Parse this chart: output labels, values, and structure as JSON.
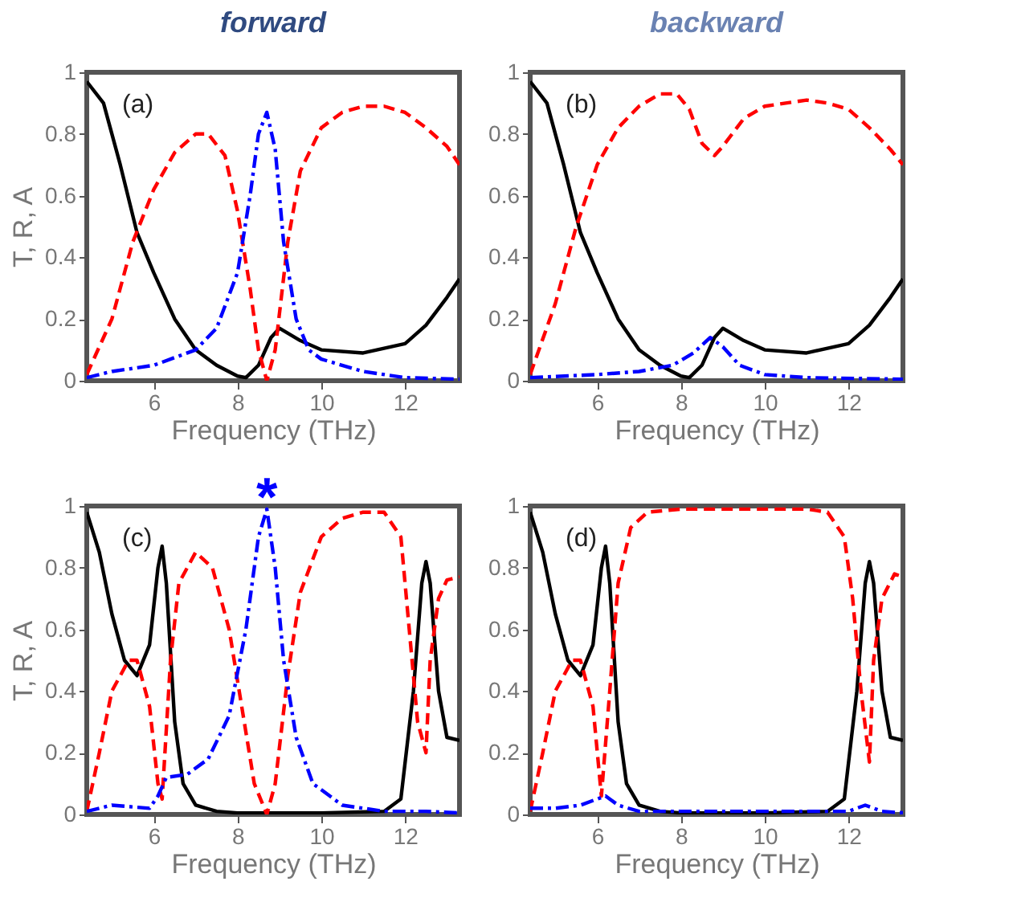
{
  "chart_data": [
    {
      "type": "line",
      "title": "forward",
      "xlabel": "Frequency (THz)",
      "ylabel": "T, R, A",
      "annotations": [
        "(a)"
      ],
      "xlim": [
        4.4,
        13.3
      ],
      "xticks": [
        6,
        8,
        10,
        12
      ],
      "ylim": [
        0,
        1
      ],
      "yticks": [
        0,
        0.2,
        0.4,
        0.6,
        0.8,
        1
      ],
      "grid": false,
      "series": [
        {
          "color": "#000000",
          "line_style": "solid",
          "x": [
            4.4,
            4.8,
            5.2,
            5.6,
            6,
            6.5,
            7,
            7.5,
            8,
            8.2,
            8.5,
            8.8,
            9,
            9.5,
            10,
            11,
            12,
            12.5,
            13,
            13.3
          ],
          "values": [
            0.97,
            0.9,
            0.7,
            0.48,
            0.35,
            0.2,
            0.1,
            0.05,
            0.015,
            0.01,
            0.05,
            0.14,
            0.17,
            0.13,
            0.1,
            0.09,
            0.12,
            0.18,
            0.27,
            0.33
          ]
        },
        {
          "color": "#ff0000",
          "line_style": "dashed",
          "x": [
            4.4,
            5,
            5.5,
            6,
            6.5,
            7,
            7.3,
            7.7,
            8,
            8.3,
            8.5,
            8.7,
            8.9,
            9.2,
            9.5,
            10,
            10.5,
            11,
            11.5,
            12,
            12.5,
            13,
            13.3
          ],
          "values": [
            0.02,
            0.2,
            0.45,
            0.62,
            0.74,
            0.8,
            0.8,
            0.73,
            0.55,
            0.3,
            0.1,
            0,
            0.1,
            0.45,
            0.68,
            0.82,
            0.87,
            0.89,
            0.89,
            0.87,
            0.82,
            0.76,
            0.7
          ]
        },
        {
          "color": "#0000ff",
          "line_style": "dashdot",
          "x": [
            4.4,
            5,
            6,
            7,
            7.5,
            8,
            8.3,
            8.5,
            8.7,
            8.9,
            9.1,
            9.4,
            9.7,
            10,
            11,
            12,
            13.3
          ],
          "values": [
            0.01,
            0.03,
            0.05,
            0.1,
            0.17,
            0.35,
            0.6,
            0.8,
            0.87,
            0.75,
            0.45,
            0.2,
            0.1,
            0.07,
            0.03,
            0.01,
            0.005
          ]
        }
      ]
    },
    {
      "type": "line",
      "title": "backward",
      "xlabel": "Frequency (THz)",
      "annotations": [
        "(b)"
      ],
      "xlim": [
        4.4,
        13.3
      ],
      "xticks": [
        6,
        8,
        10,
        12
      ],
      "ylim": [
        0,
        1
      ],
      "yticks": [
        0,
        0.2,
        0.4,
        0.6,
        0.8,
        1
      ],
      "grid": false,
      "series": [
        {
          "color": "#000000",
          "line_style": "solid",
          "x": [
            4.4,
            4.8,
            5.2,
            5.6,
            6,
            6.5,
            7,
            7.5,
            8,
            8.2,
            8.5,
            8.8,
            9,
            9.5,
            10,
            11,
            12,
            12.5,
            13,
            13.3
          ],
          "values": [
            0.97,
            0.9,
            0.7,
            0.48,
            0.35,
            0.2,
            0.1,
            0.05,
            0.015,
            0.01,
            0.05,
            0.14,
            0.17,
            0.13,
            0.1,
            0.09,
            0.12,
            0.18,
            0.27,
            0.33
          ]
        },
        {
          "color": "#ff0000",
          "line_style": "dashed",
          "x": [
            4.4,
            5,
            5.5,
            6,
            6.5,
            7,
            7.5,
            7.9,
            8.2,
            8.5,
            8.8,
            9,
            9.5,
            10,
            10.5,
            11,
            11.5,
            12,
            12.5,
            13,
            13.3
          ],
          "values": [
            0.02,
            0.25,
            0.5,
            0.7,
            0.82,
            0.89,
            0.93,
            0.93,
            0.88,
            0.77,
            0.73,
            0.76,
            0.85,
            0.89,
            0.9,
            0.91,
            0.9,
            0.88,
            0.82,
            0.75,
            0.7
          ]
        },
        {
          "color": "#0000ff",
          "line_style": "dashdot",
          "x": [
            4.4,
            6,
            7,
            7.8,
            8.3,
            8.7,
            9,
            9.4,
            10,
            11,
            13.3
          ],
          "values": [
            0.01,
            0.02,
            0.03,
            0.05,
            0.09,
            0.14,
            0.11,
            0.05,
            0.02,
            0.01,
            0.005
          ]
        }
      ]
    },
    {
      "type": "line",
      "xlabel": "Frequency (THz)",
      "ylabel": "T, R, A",
      "annotations": [
        "(c)",
        {
          "text": "*",
          "x": 8.7,
          "y": 1
        }
      ],
      "xlim": [
        4.4,
        13.3
      ],
      "xticks": [
        6,
        8,
        10,
        12
      ],
      "ylim": [
        0,
        1
      ],
      "yticks": [
        0,
        0.2,
        0.4,
        0.6,
        0.8,
        1
      ],
      "grid": false,
      "series": [
        {
          "color": "#000000",
          "line_style": "solid",
          "x": [
            4.4,
            4.7,
            5,
            5.3,
            5.6,
            5.9,
            6.1,
            6.2,
            6.3,
            6.5,
            6.7,
            7,
            7.5,
            8,
            10,
            11.5,
            11.9,
            12.2,
            12.4,
            12.5,
            12.6,
            12.8,
            13,
            13.3
          ],
          "values": [
            0.98,
            0.85,
            0.65,
            0.5,
            0.45,
            0.55,
            0.8,
            0.87,
            0.75,
            0.3,
            0.1,
            0.03,
            0.01,
            0.005,
            0.005,
            0.01,
            0.05,
            0.4,
            0.75,
            0.82,
            0.75,
            0.4,
            0.25,
            0.24
          ]
        },
        {
          "color": "#ff0000",
          "line_style": "dashed",
          "x": [
            4.4,
            4.7,
            5,
            5.4,
            5.6,
            5.9,
            6.1,
            6.2,
            6.4,
            6.6,
            7,
            7.4,
            7.8,
            8.1,
            8.4,
            8.7,
            8.9,
            9.2,
            9.5,
            10,
            10.5,
            11,
            11.5,
            11.9,
            12.1,
            12.3,
            12.5,
            12.6,
            12.8,
            13,
            13.3
          ],
          "values": [
            0.01,
            0.2,
            0.4,
            0.5,
            0.5,
            0.35,
            0.1,
            0.05,
            0.5,
            0.75,
            0.85,
            0.8,
            0.6,
            0.35,
            0.1,
            0,
            0.1,
            0.45,
            0.72,
            0.9,
            0.96,
            0.98,
            0.98,
            0.9,
            0.6,
            0.3,
            0.2,
            0.5,
            0.7,
            0.76,
            0.77
          ]
        },
        {
          "color": "#0000ff",
          "line_style": "dashdot",
          "x": [
            4.4,
            5,
            5.9,
            6.1,
            6.3,
            6.8,
            7.3,
            7.8,
            8.2,
            8.5,
            8.7,
            8.9,
            9.1,
            9.4,
            9.8,
            10.5,
            11.5,
            12.5,
            13.3
          ],
          "values": [
            0.01,
            0.03,
            0.02,
            0.06,
            0.12,
            0.13,
            0.18,
            0.32,
            0.6,
            0.9,
            0.99,
            0.8,
            0.5,
            0.25,
            0.1,
            0.03,
            0.01,
            0.01,
            0.005
          ]
        }
      ]
    },
    {
      "type": "line",
      "xlabel": "Frequency (THz)",
      "annotations": [
        "(d)"
      ],
      "xlim": [
        4.4,
        13.3
      ],
      "xticks": [
        6,
        8,
        10,
        12
      ],
      "ylim": [
        0,
        1
      ],
      "yticks": [
        0,
        0.2,
        0.4,
        0.6,
        0.8,
        1
      ],
      "grid": false,
      "series": [
        {
          "color": "#000000",
          "line_style": "solid",
          "x": [
            4.4,
            4.7,
            5,
            5.3,
            5.6,
            5.9,
            6.1,
            6.2,
            6.3,
            6.5,
            6.7,
            7,
            7.5,
            8,
            10,
            11.5,
            11.9,
            12.2,
            12.4,
            12.5,
            12.6,
            12.8,
            13,
            13.3
          ],
          "values": [
            0.98,
            0.85,
            0.65,
            0.5,
            0.45,
            0.55,
            0.8,
            0.87,
            0.75,
            0.3,
            0.1,
            0.03,
            0.01,
            0.005,
            0.005,
            0.01,
            0.05,
            0.4,
            0.75,
            0.82,
            0.75,
            0.4,
            0.25,
            0.24
          ]
        },
        {
          "color": "#ff0000",
          "line_style": "dashed",
          "x": [
            4.4,
            4.7,
            5,
            5.4,
            5.6,
            5.9,
            6.1,
            6.3,
            6.5,
            6.8,
            7.2,
            8,
            10,
            11,
            11.5,
            11.9,
            12.1,
            12.3,
            12.5,
            12.6,
            12.8,
            13.1,
            13.3
          ],
          "values": [
            0.01,
            0.2,
            0.4,
            0.5,
            0.5,
            0.35,
            0.06,
            0.4,
            0.75,
            0.93,
            0.98,
            0.99,
            0.99,
            0.99,
            0.98,
            0.9,
            0.7,
            0.4,
            0.17,
            0.5,
            0.7,
            0.78,
            0.77
          ]
        },
        {
          "color": "#0000ff",
          "line_style": "dashdot",
          "x": [
            4.4,
            5,
            5.6,
            6,
            6.2,
            6.5,
            7,
            12,
            12.4,
            12.8,
            13.3
          ],
          "values": [
            0.02,
            0.02,
            0.03,
            0.05,
            0.06,
            0.03,
            0.01,
            0.01,
            0.03,
            0.01,
            0.005
          ]
        }
      ]
    }
  ]
}
